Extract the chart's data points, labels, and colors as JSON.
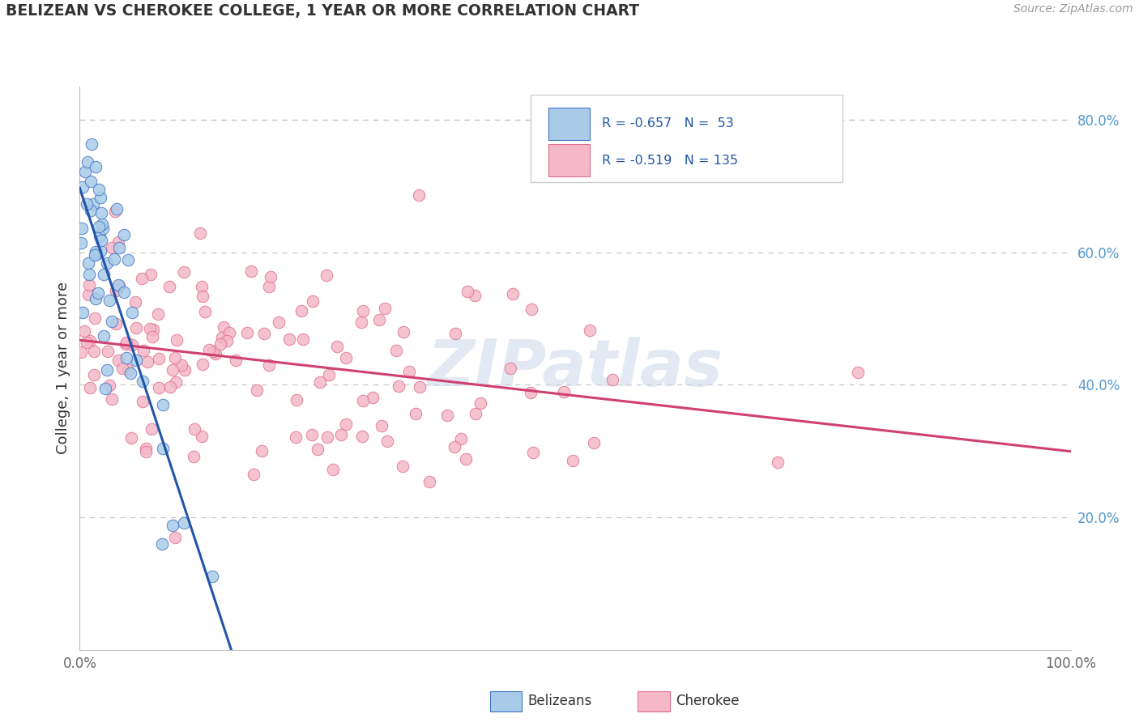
{
  "title": "BELIZEAN VS CHEROKEE COLLEGE, 1 YEAR OR MORE CORRELATION CHART",
  "source": "Source: ZipAtlas.com",
  "ylabel": "College, 1 year or more",
  "ylabel_right_ticks": [
    "20.0%",
    "40.0%",
    "60.0%",
    "80.0%"
  ],
  "ylabel_right_vals": [
    0.2,
    0.4,
    0.6,
    0.8
  ],
  "legend_blue_label": "R = -0.657   N =  53",
  "legend_pink_label": "R = -0.519   N = 135",
  "blue_scatter_color": "#a8cce8",
  "blue_edge_color": "#4472c4",
  "pink_scatter_color": "#f4b8c8",
  "pink_edge_color": "#e07090",
  "blue_line_color": "#2255aa",
  "pink_line_color": "#d04070",
  "watermark": "ZIPatlas",
  "xlim": [
    0.0,
    1.0
  ],
  "ylim": [
    0.0,
    0.85
  ],
  "background_color": "#ffffff",
  "grid_color": "#c8c8c8",
  "text_color": "#333333",
  "right_tick_color": "#5599cc",
  "source_color": "#999999"
}
